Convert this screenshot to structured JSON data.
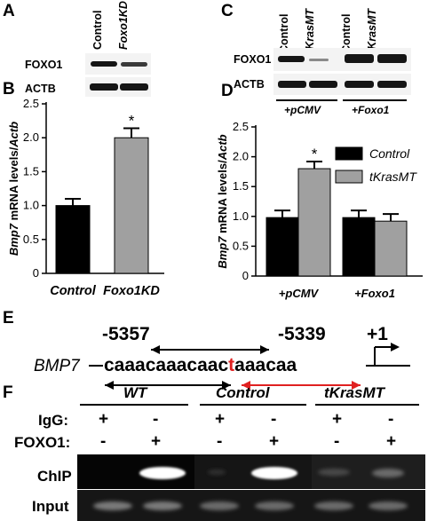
{
  "panels": {
    "A": {
      "label": "A",
      "lanes": [
        "Control",
        "Foxo1KD"
      ],
      "rows": [
        "FOXO1",
        "ACTB"
      ]
    },
    "C": {
      "label": "C",
      "lanes": [
        "Control",
        "tKrasMT",
        "Control",
        "tKrasMT"
      ],
      "rows": [
        "FOXO1",
        "ACTB"
      ],
      "groups": [
        "+pCMV",
        "+Foxo1"
      ]
    },
    "B": {
      "label": "B"
    },
    "D": {
      "label": "D"
    },
    "E": {
      "label": "E",
      "gene": "BMP7",
      "pos_left": "-5357",
      "pos_right": "-5339",
      "tss": "+1",
      "seq_a": "caaacaaacaac",
      "seq_t": "t",
      "seq_b": "aaacaa"
    },
    "F": {
      "label": "F",
      "groups": [
        "WT",
        "Control",
        "tKrasMT"
      ],
      "row_labels": [
        "IgG:",
        "FOXO1:",
        "ChIP",
        "Input"
      ],
      "igg": [
        "+",
        "-",
        "+",
        "-",
        "+",
        "-"
      ],
      "foxo1": [
        "-",
        "+",
        "-",
        "+",
        "-",
        "+"
      ]
    }
  },
  "chart_data": [
    {
      "type": "bar",
      "panel": "B",
      "title": "",
      "xlabel": "",
      "ylabel": "Bmp7 mRNA levels/Actb",
      "categories": [
        "Control",
        "Foxo1KD"
      ],
      "values": [
        1.0,
        2.0
      ],
      "errors": [
        0.1,
        0.14
      ],
      "colors": [
        "#000000",
        "#a0a0a0"
      ],
      "significance": [
        "",
        "*"
      ],
      "ylim": [
        0,
        2.5
      ],
      "yticks": [
        0,
        0.5,
        1.0,
        1.5,
        2.0,
        2.5
      ],
      "ytick_labels": [
        "0",
        "0.5",
        "1.0",
        "1.5",
        "2.0",
        "2.5"
      ]
    },
    {
      "type": "bar",
      "panel": "D",
      "title": "",
      "xlabel": "",
      "ylabel": "Bmp7 mRNA levels/Actb",
      "categories": [
        "+pCMV",
        "+Foxo1"
      ],
      "series": [
        {
          "name": "Control",
          "values": [
            0.98,
            0.98
          ],
          "errors": [
            0.12,
            0.12
          ],
          "color": "#000000"
        },
        {
          "name": "tKrasMT",
          "values": [
            1.8,
            0.92
          ],
          "errors": [
            0.12,
            0.12
          ],
          "color": "#a0a0a0"
        }
      ],
      "significance": [
        [
          "",
          "*"
        ],
        [
          "",
          ""
        ]
      ],
      "ylim": [
        0,
        2.5
      ],
      "yticks": [
        0,
        0.5,
        1.0,
        1.5,
        2.0,
        2.5
      ],
      "ytick_labels": [
        "0",
        "0.5",
        "1.0",
        "1.5",
        "2.0",
        "2.5"
      ],
      "legend_position": "top-right"
    }
  ]
}
